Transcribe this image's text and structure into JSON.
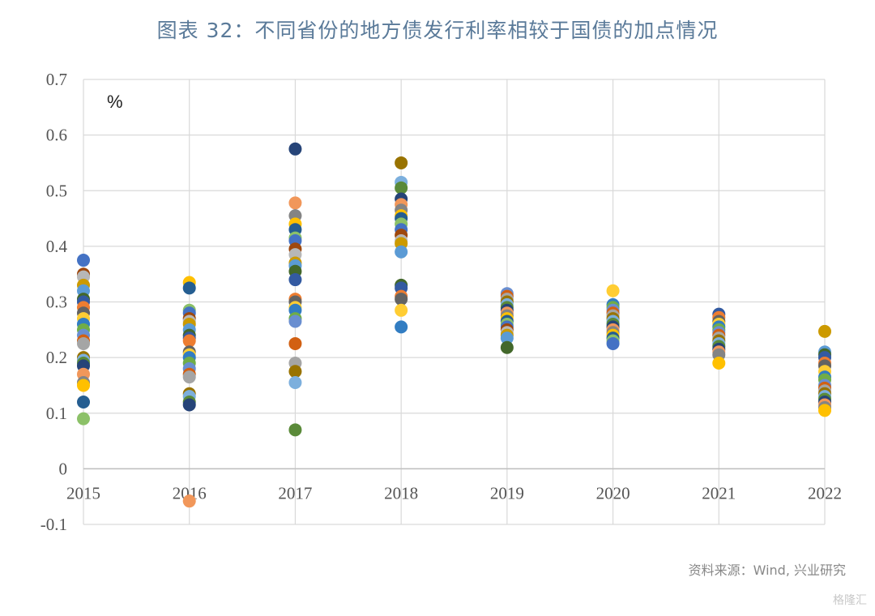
{
  "title": "图表 32：不同省份的地方债发行利率相较于国债的加点情况",
  "source": "资料来源：Wind, 兴业研究",
  "watermark": "格隆汇",
  "chart_data": {
    "type": "scatter",
    "title": "图表 32：不同省份的地方债发行利率相较于国债的加点情况",
    "unit_label": "%",
    "xlabel": "",
    "ylabel": "",
    "categories": [
      "2015",
      "2016",
      "2017",
      "2018",
      "2019",
      "2020",
      "2021",
      "2022"
    ],
    "ylim": [
      -0.1,
      0.7
    ],
    "yticks": [
      "0.7",
      "0.6",
      "0.5",
      "0.4",
      "0.3",
      "0.2",
      "0.1",
      "0",
      "-0.1"
    ],
    "ytick_values": [
      0.7,
      0.6,
      0.5,
      0.4,
      0.3,
      0.2,
      0.1,
      0,
      -0.1
    ],
    "grid": true,
    "palette": [
      "#4472c4",
      "#ed7d31",
      "#a5a5a5",
      "#ffc000",
      "#5b9bd5",
      "#70ad47",
      "#264478",
      "#9e480e",
      "#636363",
      "#997300",
      "#255e91",
      "#43682b",
      "#698ed0",
      "#f1975a",
      "#b7b7b7",
      "#ffcd33",
      "#7cafdd",
      "#8cc168",
      "#335aa1",
      "#d26012",
      "#848484",
      "#cc9a00",
      "#327dc2",
      "#5a8a39"
    ],
    "points": {
      "2015": [
        0.375,
        0.35,
        0.345,
        0.33,
        0.32,
        0.305,
        0.3,
        0.29,
        0.28,
        0.27,
        0.26,
        0.25,
        0.24,
        0.23,
        0.225,
        0.2,
        0.195,
        0.19,
        0.185,
        0.17,
        0.155,
        0.15,
        0.12,
        0.09
      ],
      "2016": [
        0.335,
        0.325,
        0.285,
        0.28,
        0.27,
        0.265,
        0.26,
        0.25,
        0.24,
        0.235,
        0.23,
        0.21,
        0.205,
        0.2,
        0.19,
        0.18,
        0.17,
        0.165,
        0.135,
        0.13,
        0.12,
        0.115,
        -0.058
      ],
      "2017": [
        0.575,
        0.478,
        0.455,
        0.44,
        0.43,
        0.415,
        0.41,
        0.395,
        0.385,
        0.37,
        0.365,
        0.355,
        0.34,
        0.305,
        0.3,
        0.29,
        0.285,
        0.27,
        0.265,
        0.225,
        0.19,
        0.175,
        0.155,
        0.07
      ],
      "2018": [
        0.55,
        0.515,
        0.505,
        0.485,
        0.475,
        0.465,
        0.455,
        0.45,
        0.44,
        0.43,
        0.42,
        0.41,
        0.405,
        0.39,
        0.33,
        0.325,
        0.31,
        0.305,
        0.285,
        0.255
      ],
      "2019": [
        0.315,
        0.31,
        0.305,
        0.3,
        0.295,
        0.29,
        0.285,
        0.28,
        0.275,
        0.27,
        0.265,
        0.26,
        0.255,
        0.25,
        0.245,
        0.24,
        0.235,
        0.218
      ],
      "2020": [
        0.32,
        0.295,
        0.29,
        0.285,
        0.28,
        0.275,
        0.27,
        0.265,
        0.26,
        0.255,
        0.25,
        0.245,
        0.24,
        0.235,
        0.23,
        0.225
      ],
      "2021": [
        0.278,
        0.272,
        0.265,
        0.26,
        0.255,
        0.25,
        0.245,
        0.24,
        0.235,
        0.23,
        0.225,
        0.22,
        0.215,
        0.21,
        0.205,
        0.19
      ],
      "2022": [
        0.247,
        0.21,
        0.205,
        0.2,
        0.19,
        0.185,
        0.175,
        0.165,
        0.16,
        0.15,
        0.145,
        0.14,
        0.135,
        0.13,
        0.125,
        0.12,
        0.115,
        0.11,
        0.105
      ]
    }
  }
}
